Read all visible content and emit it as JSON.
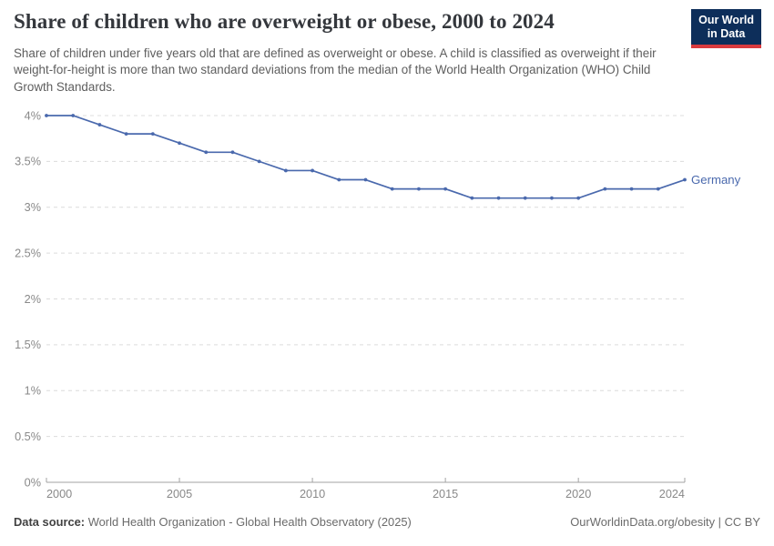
{
  "header": {
    "title": "Share of children who are overweight or obese, 2000 to 2024",
    "subtitle": "Share of children under five years old that are defined as overweight or obese. A child is classified as overweight if their weight-for-height is more than two standard deviations from the median of the World Health Organization (WHO) Child Growth Standards.",
    "logo": {
      "line1": "Our World",
      "line2": "in Data",
      "bg_color": "#0d2e5a",
      "bar_color": "#d93a3e"
    }
  },
  "chart_data": {
    "type": "line",
    "title": "Share of children who are overweight or obese, 2000 to 2024",
    "unit": "%",
    "x": [
      2000,
      2001,
      2002,
      2003,
      2004,
      2005,
      2006,
      2007,
      2008,
      2009,
      2010,
      2011,
      2012,
      2013,
      2014,
      2015,
      2016,
      2017,
      2018,
      2019,
      2020,
      2021,
      2022,
      2023,
      2024
    ],
    "series": [
      {
        "name": "Germany",
        "color": "#4a69ad",
        "values": [
          4.0,
          4.0,
          3.9,
          3.8,
          3.8,
          3.7,
          3.6,
          3.6,
          3.5,
          3.4,
          3.4,
          3.3,
          3.3,
          3.2,
          3.2,
          3.2,
          3.1,
          3.1,
          3.1,
          3.1,
          3.1,
          3.2,
          3.2,
          3.2,
          3.3
        ]
      }
    ],
    "xlim": [
      2000,
      2024
    ],
    "ylim": [
      0,
      4
    ],
    "yticks": [
      {
        "value": 0,
        "label": "0%"
      },
      {
        "value": 0.5,
        "label": "0.5%"
      },
      {
        "value": 1,
        "label": "1%"
      },
      {
        "value": 1.5,
        "label": "1.5%"
      },
      {
        "value": 2,
        "label": "2%"
      },
      {
        "value": 2.5,
        "label": "2.5%"
      },
      {
        "value": 3,
        "label": "3%"
      },
      {
        "value": 3.5,
        "label": "3.5%"
      },
      {
        "value": 4,
        "label": "4%"
      }
    ],
    "xticks": [
      {
        "value": 2000,
        "label": "2000"
      },
      {
        "value": 2005,
        "label": "2005"
      },
      {
        "value": 2010,
        "label": "2010"
      },
      {
        "value": 2015,
        "label": "2015"
      },
      {
        "value": 2020,
        "label": "2020"
      },
      {
        "value": 2024,
        "label": "2024"
      }
    ],
    "grid": "horizontal-dashed",
    "legend_position": "end-of-line-label",
    "colors": {
      "gridline": "#dcdcdc",
      "axis": "#a3a3a3",
      "tick_label": "#898989"
    }
  },
  "footer": {
    "datasource_label": "Data source:",
    "datasource_text": "World Health Organization - Global Health Observatory (2025)",
    "right_text": "OurWorldinData.org/obesity | CC BY"
  }
}
